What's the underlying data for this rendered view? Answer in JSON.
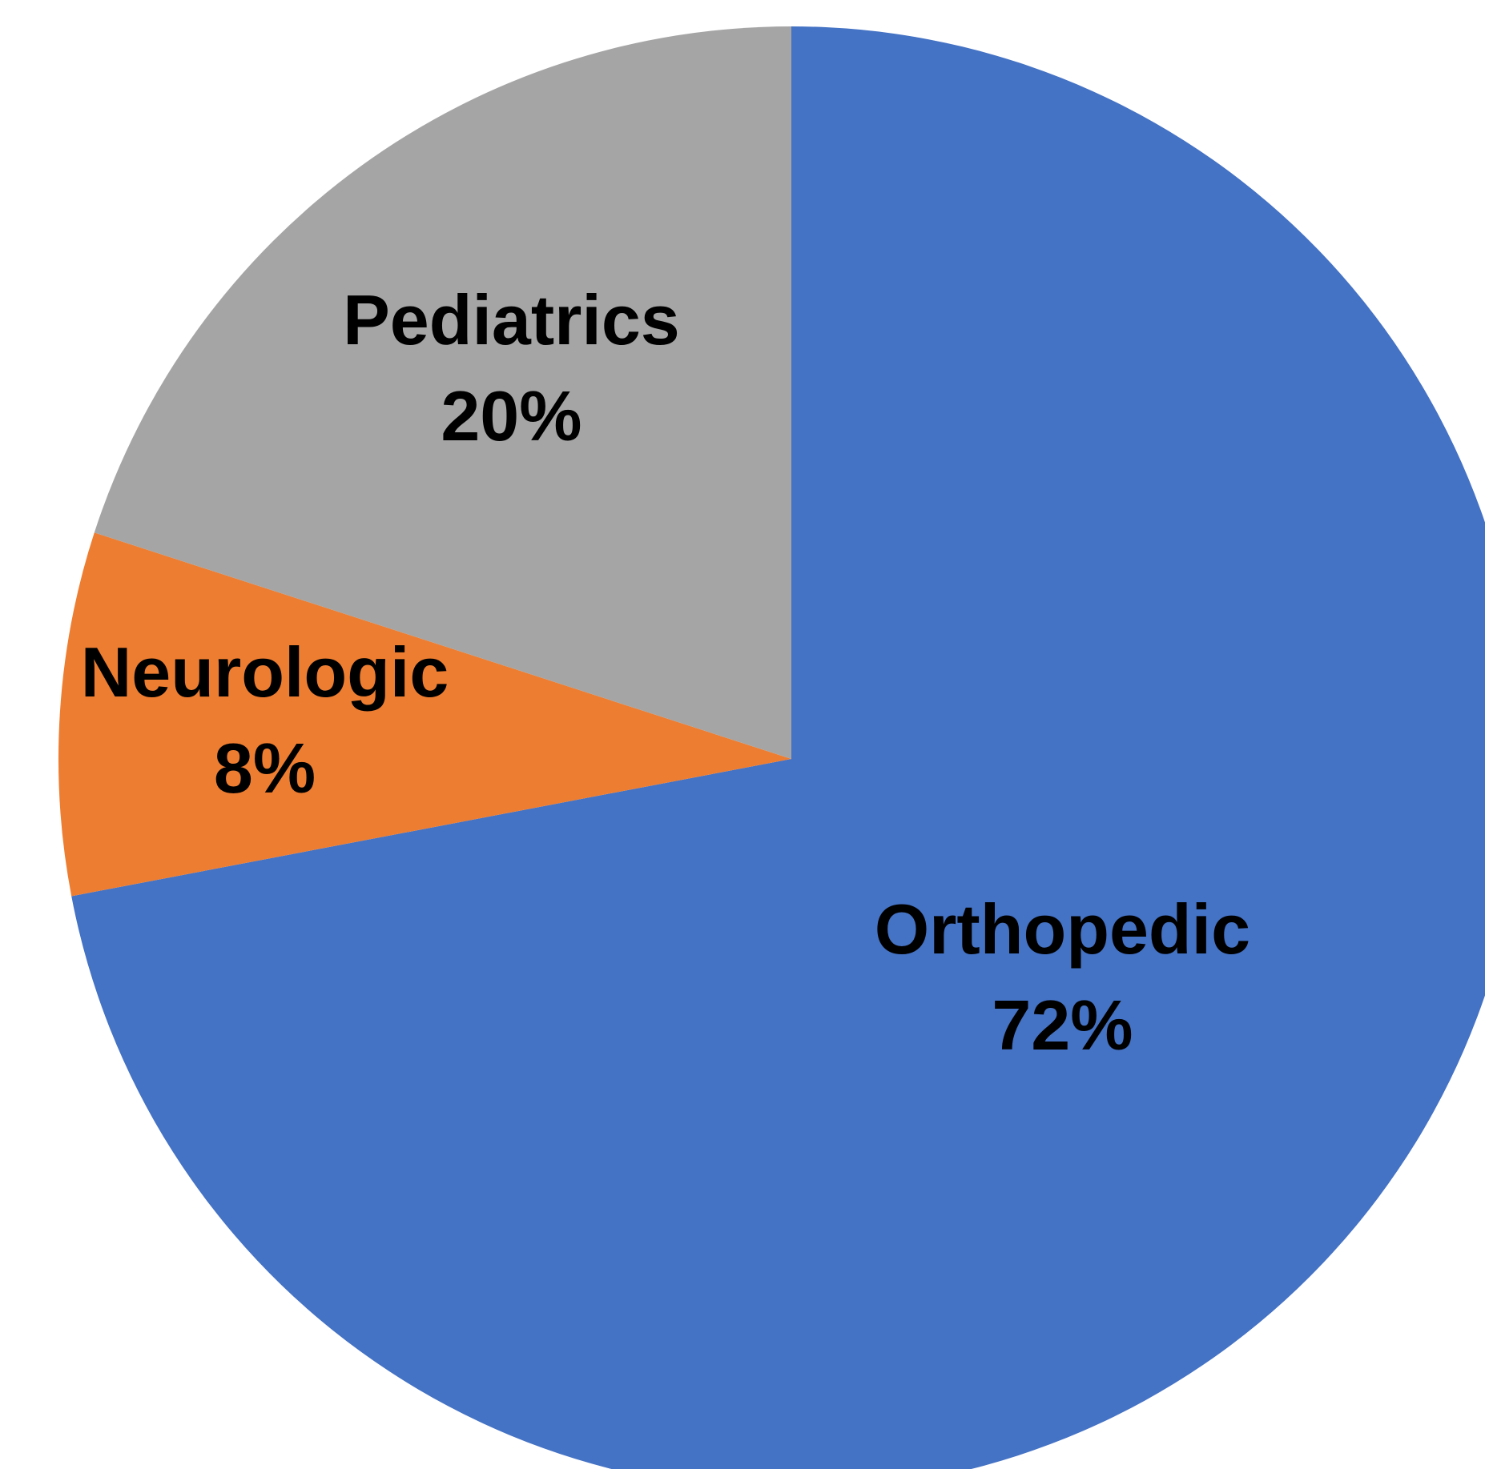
{
  "chart_data": {
    "type": "pie",
    "categories": [
      "Orthopedic",
      "Neurologic",
      "Pediatrics"
    ],
    "values": [
      72,
      8,
      20
    ],
    "value_labels": [
      "72%",
      "8%",
      "20%"
    ],
    "colors": [
      "#4472c4",
      "#ed7d31",
      "#a5a5a5"
    ]
  }
}
